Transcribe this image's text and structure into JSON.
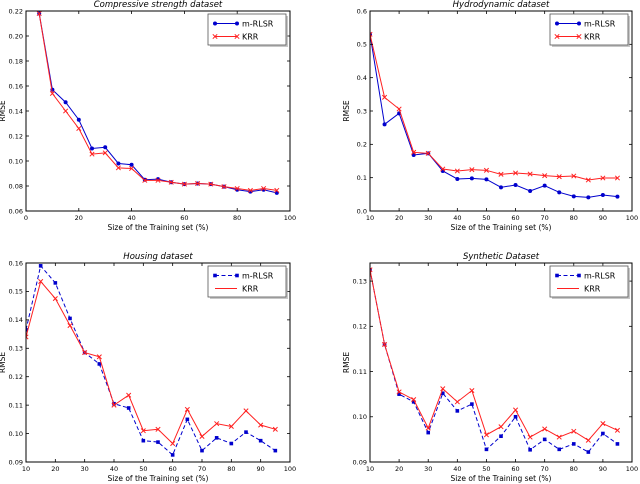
{
  "figure": {
    "background": "#ffffff",
    "text_color": "#000000",
    "axis_color": "#000000",
    "series_colors": {
      "m_rlsr": "#0000cd",
      "krr": "#ff2020"
    }
  },
  "chart_data": [
    {
      "type": "line",
      "title": "Compressive strength dataset",
      "xlabel": "Size of the Training set (%)",
      "ylabel": "RMSE",
      "xlim": [
        0,
        100
      ],
      "ylim": [
        0.06,
        0.22
      ],
      "xticks": [
        0,
        20,
        40,
        60,
        80,
        100
      ],
      "xticklabels": [
        "0",
        "20",
        "40",
        "60",
        "80",
        "100"
      ],
      "yticks": [
        0.06,
        0.08,
        0.1,
        0.12,
        0.14,
        0.16,
        0.18,
        0.2,
        0.22
      ],
      "yticklabels": [
        "0.06",
        "0.08",
        "0.10",
        "0.12",
        "0.14",
        "0.16",
        "0.18",
        "0.20",
        "0.22"
      ],
      "grid": false,
      "legend": {
        "position": "upper-right",
        "shadow": true
      },
      "x": [
        5,
        10,
        15,
        20,
        25,
        30,
        35,
        40,
        45,
        50,
        55,
        60,
        65,
        70,
        75,
        80,
        85,
        90,
        95
      ],
      "series": [
        {
          "name": "m-RLSR",
          "color": "#0000cd",
          "marker": "circle",
          "linestyle": "solid",
          "legend_marker": true,
          "values": [
            0.218,
            0.157,
            0.147,
            0.133,
            0.11,
            0.111,
            0.098,
            0.097,
            0.085,
            0.0855,
            0.083,
            0.0815,
            0.082,
            0.0815,
            0.0795,
            0.077,
            0.0755,
            0.077,
            0.0745
          ]
        },
        {
          "name": "KRR",
          "color": "#ff2020",
          "marker": "x",
          "linestyle": "solid",
          "legend_marker": true,
          "values": [
            0.218,
            0.154,
            0.14,
            0.126,
            0.1055,
            0.1065,
            0.0945,
            0.094,
            0.0845,
            0.0845,
            0.083,
            0.0815,
            0.082,
            0.0815,
            0.0795,
            0.078,
            0.0765,
            0.078,
            0.0765
          ]
        }
      ]
    },
    {
      "type": "line",
      "title": "Hydrodynamic dataset",
      "xlabel": "Size of the Training set (%)",
      "ylabel": "RMSE",
      "xlim": [
        10,
        100
      ],
      "ylim": [
        0.0,
        0.6
      ],
      "xticks": [
        10,
        20,
        30,
        40,
        50,
        60,
        70,
        80,
        90,
        100
      ],
      "xticklabels": [
        "10",
        "20",
        "30",
        "40",
        "50",
        "60",
        "70",
        "80",
        "90",
        "100"
      ],
      "yticks": [
        0.0,
        0.1,
        0.2,
        0.3,
        0.4,
        0.5,
        0.6
      ],
      "yticklabels": [
        "0.0",
        "0.1",
        "0.2",
        "0.3",
        "0.4",
        "0.5",
        "0.6"
      ],
      "grid": false,
      "legend": {
        "position": "upper-right",
        "shadow": true
      },
      "x": [
        10,
        15,
        20,
        25,
        30,
        35,
        40,
        45,
        50,
        55,
        60,
        65,
        70,
        75,
        80,
        85,
        90,
        95
      ],
      "series": [
        {
          "name": "m-RLSR",
          "color": "#0000cd",
          "marker": "circle",
          "linestyle": "solid",
          "legend_marker": true,
          "values": [
            0.53,
            0.26,
            0.293,
            0.168,
            0.173,
            0.12,
            0.096,
            0.098,
            0.095,
            0.071,
            0.078,
            0.06,
            0.076,
            0.056,
            0.044,
            0.041,
            0.048,
            0.043
          ]
        },
        {
          "name": "KRR",
          "color": "#ff2020",
          "marker": "x",
          "linestyle": "solid",
          "legend_marker": true,
          "values": [
            0.53,
            0.341,
            0.306,
            0.176,
            0.173,
            0.126,
            0.12,
            0.124,
            0.122,
            0.11,
            0.114,
            0.111,
            0.106,
            0.103,
            0.105,
            0.093,
            0.099,
            0.099
          ]
        }
      ]
    },
    {
      "type": "line",
      "title": "Housing dataset",
      "xlabel": "Size of the Training set (%)",
      "ylabel": "RMSE",
      "xlim": [
        10,
        100
      ],
      "ylim": [
        0.09,
        0.16
      ],
      "xticks": [
        10,
        20,
        30,
        40,
        50,
        60,
        70,
        80,
        90,
        100
      ],
      "xticklabels": [
        "10",
        "20",
        "30",
        "40",
        "50",
        "60",
        "70",
        "80",
        "90",
        "100"
      ],
      "yticks": [
        0.09,
        0.1,
        0.11,
        0.12,
        0.13,
        0.14,
        0.15,
        0.16
      ],
      "yticklabels": [
        "0.09",
        "0.10",
        "0.11",
        "0.12",
        "0.13",
        "0.14",
        "0.15",
        "0.16"
      ],
      "grid": false,
      "legend": {
        "position": "upper-right",
        "shadow": true
      },
      "x": [
        10,
        15,
        20,
        25,
        30,
        35,
        40,
        45,
        50,
        55,
        60,
        65,
        70,
        75,
        80,
        85,
        90,
        95
      ],
      "series": [
        {
          "name": "m-RLSR",
          "color": "#0000cd",
          "marker": "square",
          "linestyle": "dashed",
          "legend_marker": true,
          "values": [
            0.1365,
            0.159,
            0.153,
            0.1405,
            0.1285,
            0.1245,
            0.1105,
            0.109,
            0.0975,
            0.097,
            0.0925,
            0.105,
            0.094,
            0.0985,
            0.0965,
            0.1005,
            0.0975,
            0.094
          ]
        },
        {
          "name": "KRR",
          "color": "#ff2020",
          "marker": "x",
          "linestyle": "solid",
          "legend_marker": false,
          "values": [
            0.134,
            0.1535,
            0.1475,
            0.138,
            0.1285,
            0.127,
            0.11,
            0.1135,
            0.101,
            0.1015,
            0.0965,
            0.1085,
            0.099,
            0.1035,
            0.1025,
            0.108,
            0.103,
            0.1015
          ]
        }
      ]
    },
    {
      "type": "line",
      "title": "Synthetic Dataset",
      "xlabel": "Size of the Training set (%)",
      "ylabel": "RMSE",
      "xlim": [
        10,
        100
      ],
      "ylim": [
        0.09,
        0.134
      ],
      "xticks": [
        10,
        20,
        30,
        40,
        50,
        60,
        70,
        80,
        90,
        100
      ],
      "xticklabels": [
        "10",
        "20",
        "30",
        "40",
        "50",
        "60",
        "70",
        "80",
        "90",
        "100"
      ],
      "yticks": [
        0.09,
        0.1,
        0.11,
        0.12,
        0.13
      ],
      "yticklabels": [
        "0.09",
        "0.10",
        "0.11",
        "0.12",
        "0.13"
      ],
      "grid": false,
      "legend": {
        "position": "upper-right",
        "shadow": true
      },
      "x": [
        10,
        15,
        20,
        25,
        30,
        35,
        40,
        45,
        50,
        55,
        60,
        65,
        70,
        75,
        80,
        85,
        90,
        95
      ],
      "series": [
        {
          "name": "m-RLSR",
          "color": "#0000cd",
          "marker": "square",
          "linestyle": "dashed",
          "legend_marker": true,
          "values": [
            0.1325,
            0.116,
            0.105,
            0.1033,
            0.0965,
            0.1052,
            0.1013,
            0.1028,
            0.0928,
            0.0957,
            0.1,
            0.0927,
            0.095,
            0.0928,
            0.094,
            0.0922,
            0.0963,
            0.094
          ]
        },
        {
          "name": "KRR",
          "color": "#ff2020",
          "marker": "x",
          "linestyle": "solid",
          "legend_marker": false,
          "values": [
            0.1325,
            0.116,
            0.1055,
            0.1038,
            0.0975,
            0.1062,
            0.1033,
            0.1058,
            0.096,
            0.0978,
            0.1015,
            0.0955,
            0.0973,
            0.0955,
            0.0968,
            0.0948,
            0.0985,
            0.097
          ]
        }
      ]
    }
  ]
}
